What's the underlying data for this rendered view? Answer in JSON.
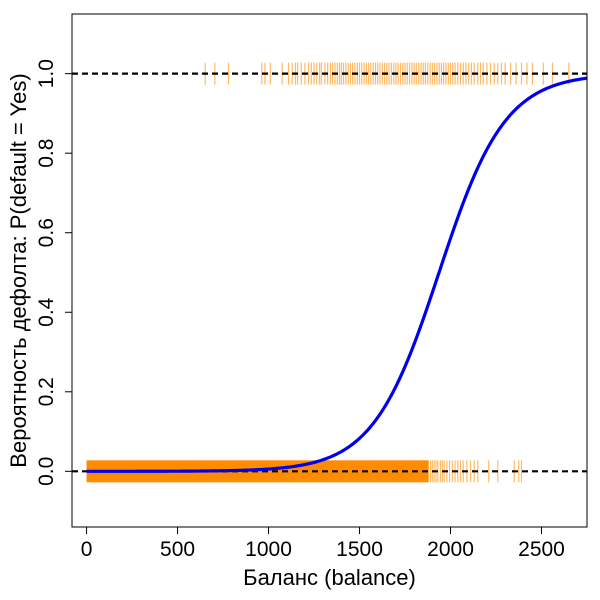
{
  "chart_data": {
    "type": "line",
    "title": "",
    "xlabel": "Баланс (balance)",
    "ylabel": "Вероятность дефолта: P(default = Yes)",
    "xlim": [
      -80,
      2750
    ],
    "ylim": [
      -0.14,
      1.15
    ],
    "xticks": [
      0,
      500,
      1000,
      1500,
      2000,
      2500
    ],
    "yticks": [
      0.0,
      0.2,
      0.4,
      0.6,
      0.8,
      1.0
    ],
    "xtick_labels": [
      "0",
      "500",
      "1000",
      "1500",
      "2000",
      "2500"
    ],
    "ytick_labels": [
      "0.0",
      "0.2",
      "0.4",
      "0.6",
      "0.8",
      "1.0"
    ],
    "reference_lines_y": [
      0,
      1
    ],
    "grid": false,
    "series": [
      {
        "type": "logistic-curve",
        "color": "#0000ee",
        "coefficients": {
          "intercept": -10.6513,
          "slope": 0.005499
        },
        "x": [
          0,
          250,
          500,
          750,
          1000,
          1100,
          1200,
          1300,
          1400,
          1500,
          1600,
          1700,
          1800,
          1900,
          1950,
          2000,
          2100,
          2200,
          2300,
          2400,
          2500,
          2600,
          2750
        ],
        "y": [
          2e-05,
          9e-05,
          0.00036,
          0.0014,
          0.0058,
          0.01,
          0.0172,
          0.0295,
          0.05,
          0.0832,
          0.1345,
          0.2082,
          0.3039,
          0.4141,
          0.4787,
          0.547,
          0.6773,
          0.7836,
          0.8616,
          0.9144,
          0.9483,
          0.9692,
          0.986
        ]
      },
      {
        "type": "rug",
        "y_value": 1,
        "color": "#ff8c00",
        "x": [
          652,
          705,
          780,
          963,
          980,
          1010,
          1075,
          1110,
          1130,
          1148,
          1160,
          1180,
          1200,
          1220,
          1235,
          1250,
          1265,
          1280,
          1290,
          1310,
          1325,
          1340,
          1352,
          1365,
          1378,
          1390,
          1400,
          1412,
          1425,
          1438,
          1450,
          1462,
          1475,
          1488,
          1500,
          1512,
          1525,
          1538,
          1550,
          1562,
          1575,
          1588,
          1600,
          1612,
          1625,
          1638,
          1650,
          1662,
          1675,
          1688,
          1700,
          1712,
          1725,
          1738,
          1750,
          1762,
          1775,
          1788,
          1800,
          1812,
          1825,
          1838,
          1850,
          1862,
          1875,
          1888,
          1900,
          1912,
          1925,
          1938,
          1950,
          1962,
          1975,
          1988,
          2000,
          2012,
          2025,
          2040,
          2055,
          2070,
          2085,
          2100,
          2115,
          2130,
          2150,
          2165,
          2180,
          2200,
          2220,
          2240,
          2260,
          2280,
          2300,
          2330,
          2360,
          2390,
          2420,
          2450,
          2510,
          2560,
          2650
        ]
      },
      {
        "type": "rug",
        "y_value": 0,
        "color": "#ff8c00",
        "x_dense_range": [
          0,
          1880
        ],
        "x": [
          1890,
          1900,
          1910,
          1920,
          1930,
          1945,
          1955,
          1965,
          1980,
          1995,
          2010,
          2025,
          2040,
          2055,
          2070,
          2090,
          2110,
          2130,
          2150,
          2210,
          2260,
          2350,
          2375,
          2390
        ]
      }
    ]
  }
}
